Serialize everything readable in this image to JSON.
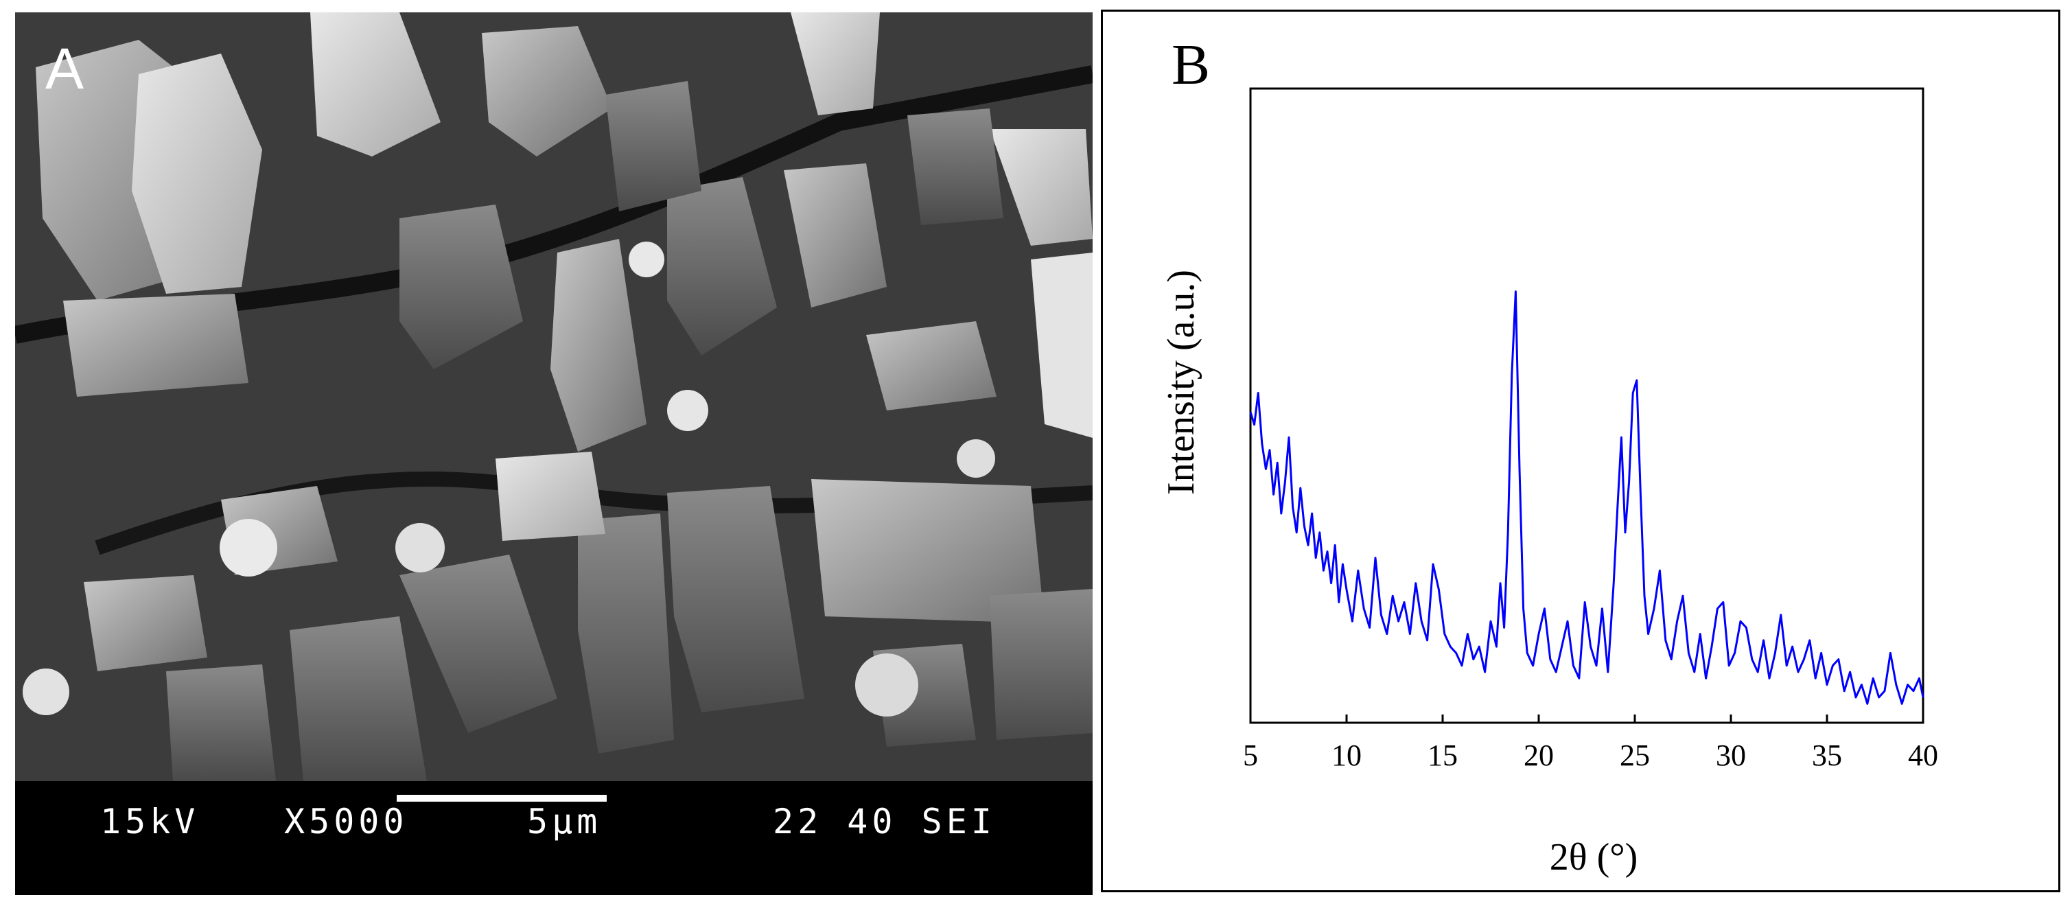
{
  "panel_a": {
    "letter": "A",
    "voltage": "15kV",
    "magnification": "X5000",
    "scale_label": "5µm",
    "info": "22 40 SEI"
  },
  "panel_b": {
    "letter": "B"
  },
  "chart_data": {
    "type": "line",
    "title": "",
    "xlabel": "2θ (°)",
    "ylabel": "Intensity (a.u.)",
    "xlim": [
      5,
      40
    ],
    "ylim": [
      0,
      100
    ],
    "xticks": [
      5,
      10,
      15,
      20,
      25,
      30,
      35,
      40
    ],
    "yticks_shown": false,
    "grid": false,
    "legend": "none",
    "line_color": "#0000ff",
    "series": [
      {
        "x": [
          5.0,
          5.2,
          5.4,
          5.6,
          5.8,
          6.0,
          6.2,
          6.4,
          6.6,
          6.8,
          7.0,
          7.2,
          7.4,
          7.6,
          7.8,
          8.0,
          8.2,
          8.4,
          8.6,
          8.8,
          9.0,
          9.2,
          9.4,
          9.6,
          9.8,
          10.0,
          10.3,
          10.6,
          10.9,
          11.2,
          11.5,
          11.8,
          12.1,
          12.4,
          12.7,
          13.0,
          13.3,
          13.6,
          13.9,
          14.2,
          14.5,
          14.8,
          15.1,
          15.4,
          15.7,
          16.0,
          16.3,
          16.6,
          16.9,
          17.2,
          17.5,
          17.8,
          18.0,
          18.2,
          18.4,
          18.6,
          18.8,
          19.0,
          19.2,
          19.4,
          19.7,
          20.0,
          20.3,
          20.6,
          20.9,
          21.2,
          21.5,
          21.8,
          22.1,
          22.4,
          22.7,
          23.0,
          23.3,
          23.6,
          23.9,
          24.1,
          24.3,
          24.5,
          24.7,
          24.9,
          25.1,
          25.3,
          25.5,
          25.7,
          26.0,
          26.3,
          26.6,
          26.9,
          27.2,
          27.5,
          27.8,
          28.1,
          28.4,
          28.7,
          29.0,
          29.3,
          29.6,
          29.9,
          30.2,
          30.5,
          30.8,
          31.1,
          31.4,
          31.7,
          32.0,
          32.3,
          32.6,
          32.9,
          33.2,
          33.5,
          33.8,
          34.1,
          34.4,
          34.7,
          35.0,
          35.3,
          35.6,
          35.9,
          36.2,
          36.5,
          36.8,
          37.1,
          37.4,
          37.7,
          38.0,
          38.3,
          38.6,
          38.9,
          39.2,
          39.5,
          39.8,
          40.0
        ],
        "y": [
          49,
          47,
          52,
          44,
          40,
          43,
          36,
          41,
          33,
          38,
          45,
          34,
          30,
          37,
          31,
          28,
          33,
          26,
          30,
          24,
          27,
          22,
          28,
          19,
          25,
          21,
          16,
          24,
          18,
          15,
          26,
          17,
          14,
          20,
          16,
          19,
          14,
          22,
          16,
          13,
          25,
          21,
          14,
          12,
          11,
          9,
          14,
          10,
          12,
          8,
          16,
          12,
          22,
          15,
          30,
          55,
          68,
          40,
          18,
          11,
          9,
          14,
          18,
          10,
          8,
          12,
          16,
          9,
          7,
          19,
          12,
          9,
          18,
          8,
          22,
          34,
          45,
          30,
          38,
          52,
          54,
          36,
          20,
          14,
          18,
          24,
          13,
          10,
          16,
          20,
          11,
          8,
          14,
          7,
          12,
          18,
          19,
          9,
          11,
          16,
          15,
          10,
          8,
          13,
          7,
          11,
          17,
          9,
          12,
          8,
          10,
          13,
          7,
          11,
          6,
          9,
          10,
          5,
          8,
          4,
          6,
          3,
          7,
          4,
          5,
          11,
          6,
          3,
          6,
          5,
          7,
          4
        ]
      }
    ]
  }
}
